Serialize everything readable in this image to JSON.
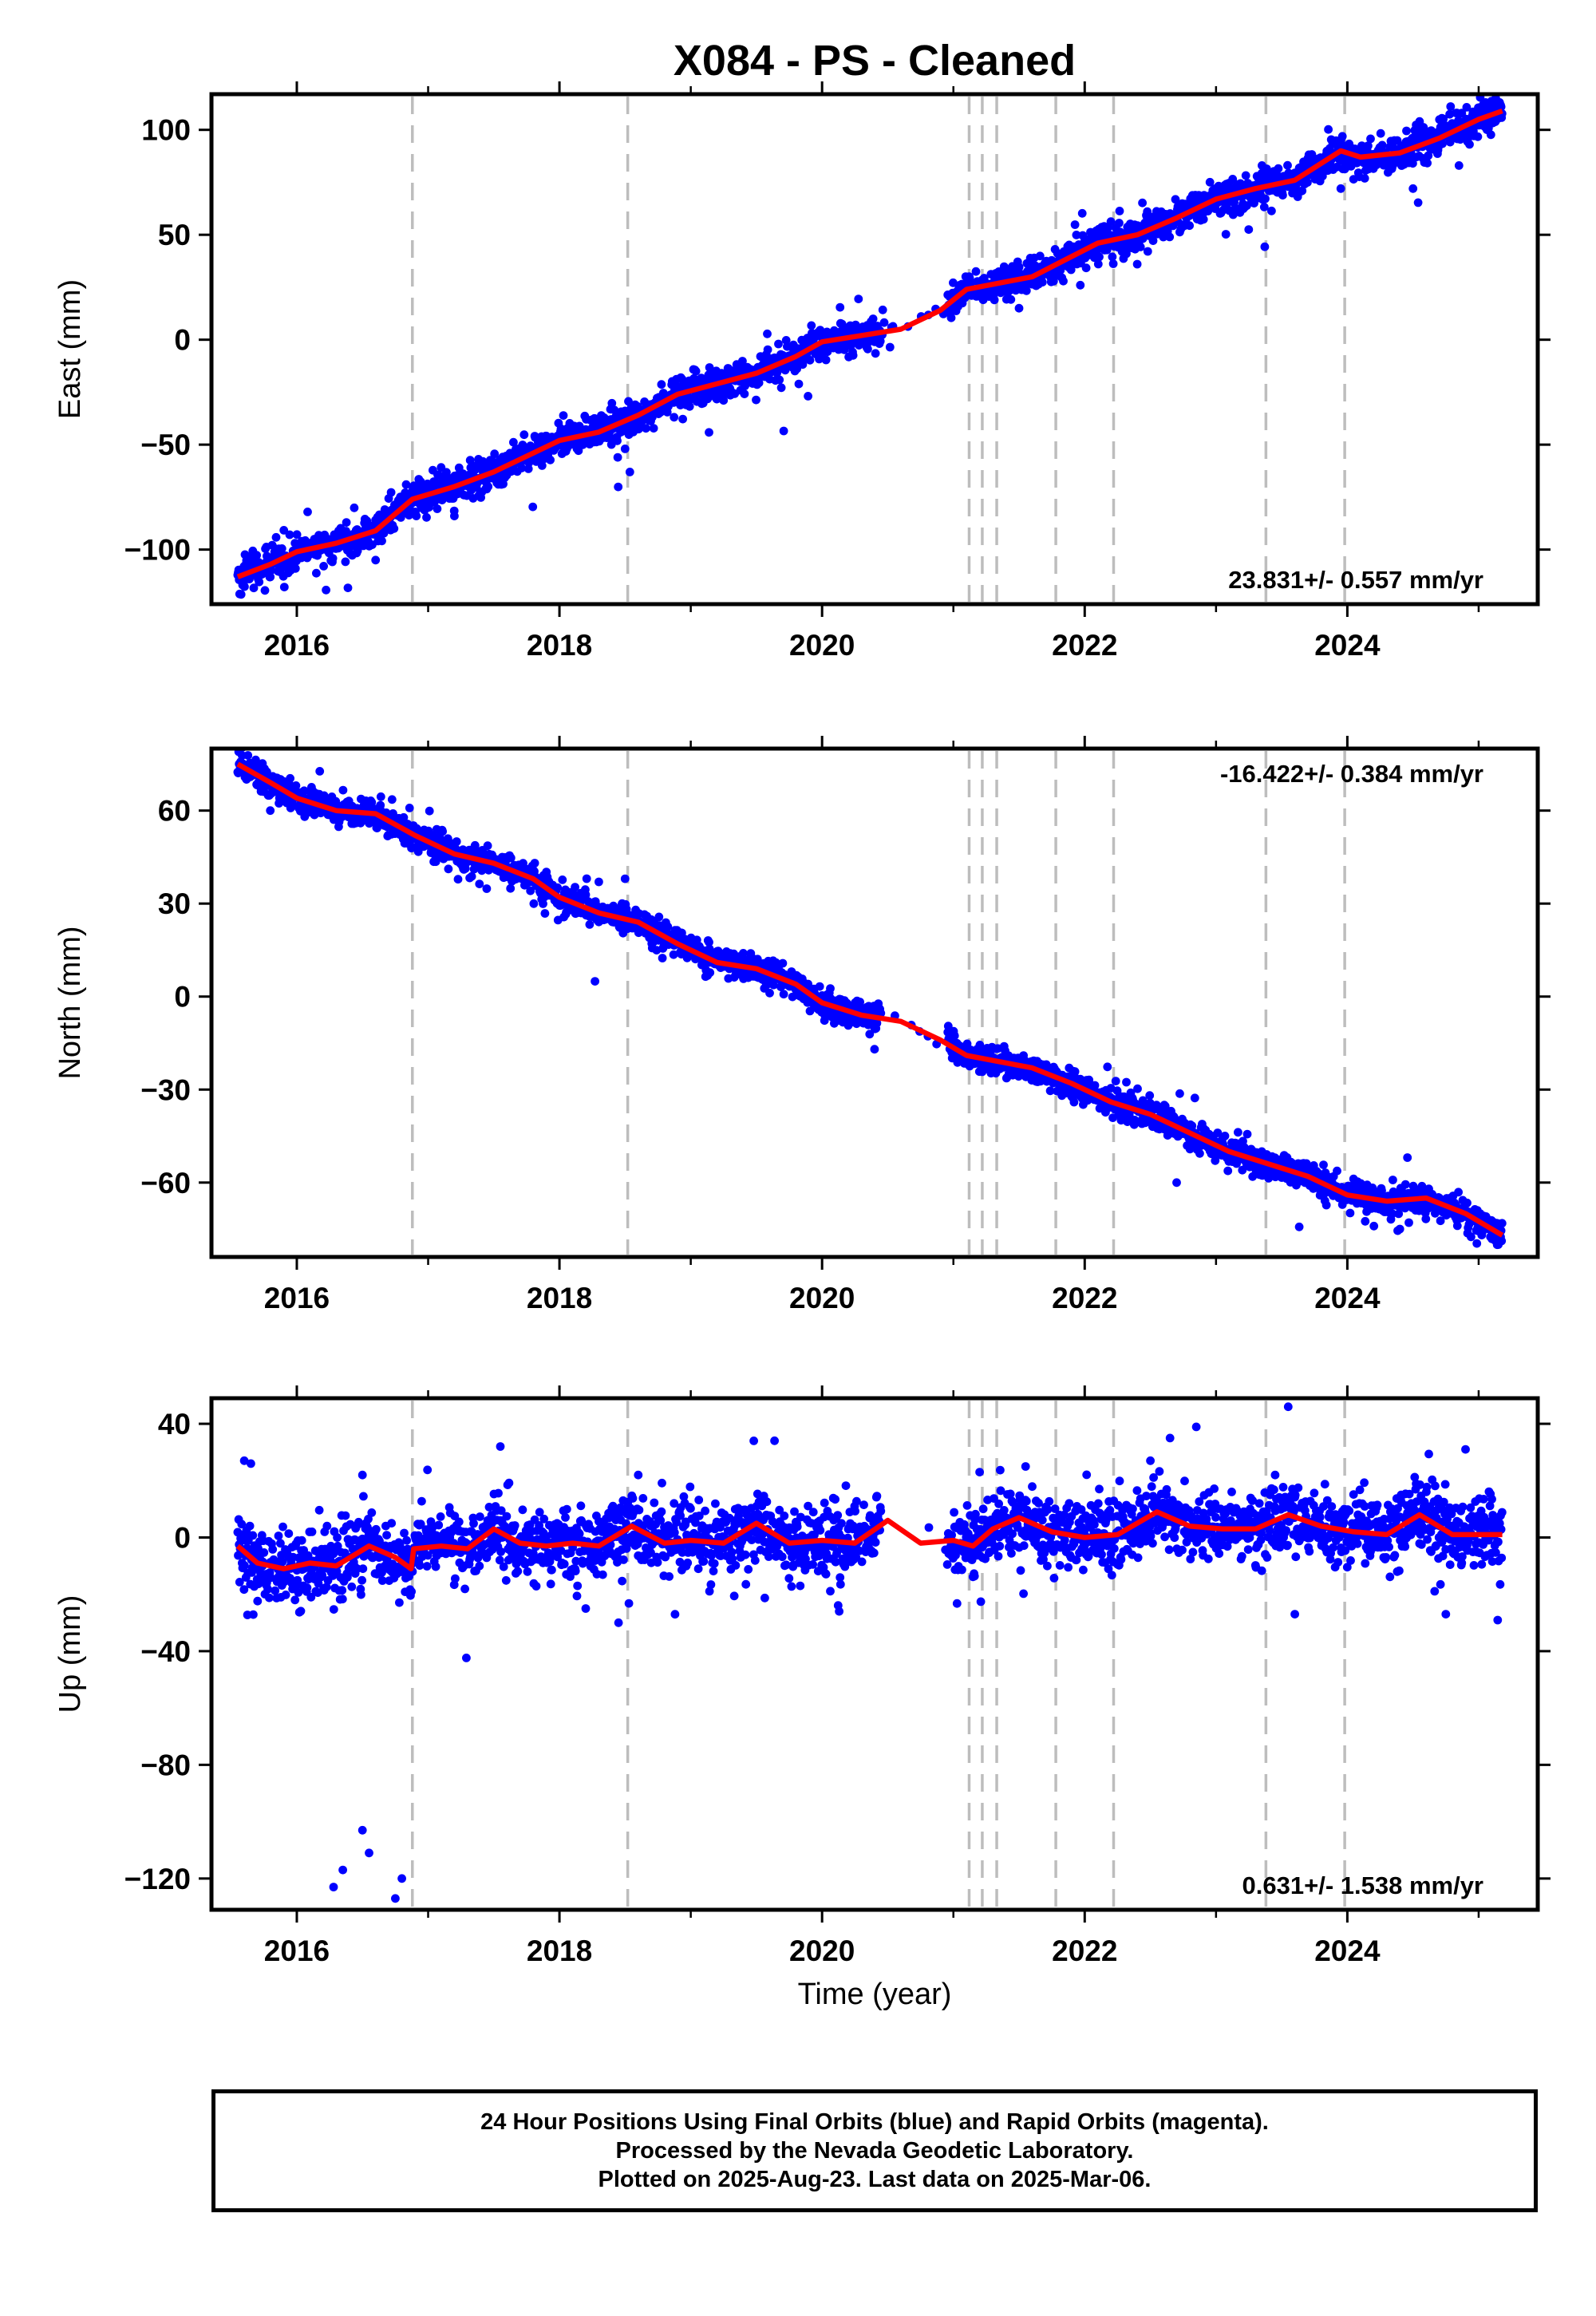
{
  "title": "X084  - PS - Cleaned",
  "footer": {
    "line1": "24 Hour Positions Using Final Orbits (blue) and Rapid Orbits (magenta).",
    "line2": "Processed by the Nevada Geodetic Laboratory.",
    "line3": "Plotted on 2025-Aug-23. Last data on 2025-Mar-06."
  },
  "chart_data": [
    {
      "type": "scatter",
      "component": "East",
      "ylabel": "East (mm)",
      "xlabel": "",
      "xlim": [
        2015.35,
        2025.45
      ],
      "ylim": [
        -126,
        117
      ],
      "xticks": [
        2016,
        2018,
        2020,
        2022,
        2024
      ],
      "xtick_labels": [
        "2016",
        "2018",
        "2020",
        "2022",
        "2024"
      ],
      "yticks": [
        -100,
        -50,
        0,
        50,
        100
      ],
      "ytick_labels": [
        "−100",
        "−50",
        "0",
        "50",
        "100"
      ],
      "rate_label": "23.831+/- 0.557 mm/yr",
      "rate_position": "bottom-right",
      "event_lines": [
        2016.88,
        2018.52,
        2021.12,
        2021.22,
        2021.33,
        2021.78,
        2022.22,
        2023.38,
        2023.98
      ],
      "grid": false,
      "data_gap": [
        2020.45,
        2020.95
      ],
      "model_line": {
        "color": "#ff0000",
        "x": [
          2015.55,
          2015.8,
          2016.0,
          2016.3,
          2016.6,
          2016.88,
          2017.2,
          2017.5,
          2017.8,
          2018.0,
          2018.3,
          2018.6,
          2018.9,
          2019.2,
          2019.5,
          2019.8,
          2020.0,
          2020.3,
          2020.6,
          2020.9,
          2021.1,
          2021.35,
          2021.6,
          2021.85,
          2022.1,
          2022.4,
          2022.7,
          2023.0,
          2023.3,
          2023.6,
          2023.95,
          2024.1,
          2024.4,
          2024.7,
          2025.0,
          2025.18
        ],
        "y": [
          -113,
          -107,
          -101,
          -97,
          -91,
          -76,
          -70,
          -63,
          -54,
          -48,
          -44,
          -36,
          -26,
          -21,
          -16,
          -8,
          -1,
          2,
          5,
          14,
          24,
          27,
          30,
          38,
          46,
          50,
          58,
          67,
          72,
          76,
          90,
          87,
          89,
          96,
          105,
          109
        ]
      },
      "series": [
        {
          "name": "Final Orbits (blue)",
          "color": "#0000ff",
          "trend": {
            "x": [
              2015.55,
              2015.8,
              2016.0,
              2016.3,
              2016.6,
              2016.88,
              2017.2,
              2017.5,
              2017.8,
              2018.0,
              2018.3,
              2018.6,
              2018.9,
              2019.2,
              2019.5,
              2019.8,
              2020.0,
              2020.3,
              2020.6,
              2020.9,
              2021.1,
              2021.35,
              2021.6,
              2021.85,
              2022.1,
              2022.4,
              2022.7,
              2023.0,
              2023.3,
              2023.6,
              2023.95,
              2024.1,
              2024.4,
              2024.7,
              2025.0,
              2025.18
            ],
            "y": [
              -113,
              -107,
              -101,
              -97,
              -91,
              -76,
              -70,
              -63,
              -54,
              -48,
              -44,
              -36,
              -26,
              -21,
              -16,
              -8,
              -1,
              2,
              5,
              14,
              24,
              27,
              30,
              38,
              46,
              50,
              58,
              67,
              72,
              76,
              90,
              87,
              89,
              96,
              105,
              109
            ]
          },
          "scatter_spread_mm": 4,
          "outliers": [
            {
              "x": 2018.5,
              "y": -52
            },
            {
              "x": 2017.2,
              "y": -84
            },
            {
              "x": 2016.6,
              "y": -105
            },
            {
              "x": 2020.4,
              "y": -1
            },
            {
              "x": 2024.5,
              "y": 72
            },
            {
              "x": 2024.55,
              "y": 104
            },
            {
              "x": 2023.35,
              "y": 83
            },
            {
              "x": 2022.4,
              "y": 36
            },
            {
              "x": 2021.5,
              "y": 15
            },
            {
              "x": 2023.95,
              "y": 72
            },
            {
              "x": 2024.85,
              "y": 83
            }
          ]
        }
      ]
    },
    {
      "type": "scatter",
      "component": "North",
      "ylabel": "North (mm)",
      "xlabel": "",
      "xlim": [
        2015.35,
        2025.45
      ],
      "ylim": [
        -84,
        80
      ],
      "xticks": [
        2016,
        2018,
        2020,
        2022,
        2024
      ],
      "xtick_labels": [
        "2016",
        "2018",
        "2020",
        "2022",
        "2024"
      ],
      "yticks": [
        -60,
        -30,
        0,
        30,
        60
      ],
      "ytick_labels": [
        "−60",
        "−30",
        "0",
        "30",
        "60"
      ],
      "rate_label": "-16.422+/- 0.384 mm/yr",
      "rate_position": "top-right",
      "event_lines": [
        2016.88,
        2018.52,
        2021.12,
        2021.22,
        2021.33,
        2021.78,
        2022.22,
        2023.38,
        2023.98
      ],
      "grid": false,
      "data_gap": [
        2020.45,
        2020.95
      ],
      "model_line": {
        "color": "#ff0000",
        "x": [
          2015.55,
          2015.8,
          2016.0,
          2016.3,
          2016.6,
          2016.9,
          2017.2,
          2017.5,
          2017.8,
          2018.0,
          2018.3,
          2018.6,
          2018.9,
          2019.2,
          2019.5,
          2019.8,
          2020.0,
          2020.3,
          2020.6,
          2020.9,
          2021.1,
          2021.35,
          2021.6,
          2021.9,
          2022.2,
          2022.5,
          2022.8,
          2023.1,
          2023.4,
          2023.7,
          2024.0,
          2024.3,
          2024.6,
          2024.9,
          2025.18
        ],
        "y": [
          75,
          69,
          64,
          60,
          59,
          52,
          46,
          43,
          38,
          32,
          27,
          24,
          17,
          11,
          9,
          4,
          -2,
          -6,
          -8,
          -14,
          -19,
          -21,
          -23,
          -28,
          -34,
          -38,
          -44,
          -50,
          -54,
          -58,
          -64,
          -66,
          -65,
          -70,
          -77
        ]
      },
      "series": [
        {
          "name": "Final Orbits (blue)",
          "color": "#0000ff",
          "trend": {
            "x": [
              2015.55,
              2015.8,
              2016.0,
              2016.3,
              2016.6,
              2016.9,
              2017.2,
              2017.5,
              2017.8,
              2018.0,
              2018.3,
              2018.6,
              2018.9,
              2019.2,
              2019.5,
              2019.8,
              2020.0,
              2020.3,
              2020.6,
              2020.9,
              2021.1,
              2021.35,
              2021.6,
              2021.9,
              2022.2,
              2022.5,
              2022.8,
              2023.1,
              2023.4,
              2023.7,
              2024.0,
              2024.3,
              2024.6,
              2024.9,
              2025.18
            ],
            "y": [
              75,
              69,
              64,
              60,
              59,
              52,
              46,
              43,
              38,
              32,
              27,
              24,
              17,
              11,
              9,
              4,
              -2,
              -6,
              -8,
              -14,
              -19,
              -21,
              -23,
              -28,
              -34,
              -38,
              -44,
              -50,
              -54,
              -58,
              -64,
              -66,
              -65,
              -70,
              -77
            ]
          },
          "scatter_spread_mm": 2.2,
          "outliers": [
            {
              "x": 2018.3,
              "y": 37
            },
            {
              "x": 2018.5,
              "y": 38
            },
            {
              "x": 2022.7,
              "y": -60
            },
            {
              "x": 2023.2,
              "y": -56
            },
            {
              "x": 2019.4,
              "y": 14
            },
            {
              "x": 2024.4,
              "y": -75
            },
            {
              "x": 2025.15,
              "y": -80
            }
          ]
        }
      ]
    },
    {
      "type": "scatter",
      "component": "Up",
      "ylabel": "Up (mm)",
      "xlabel": "Time (year)",
      "xlim": [
        2015.35,
        2025.45
      ],
      "ylim": [
        -131,
        49
      ],
      "xticks": [
        2016,
        2018,
        2020,
        2022,
        2024
      ],
      "xtick_labels": [
        "2016",
        "2018",
        "2020",
        "2022",
        "2024"
      ],
      "yticks": [
        -120,
        -80,
        -40,
        0,
        40
      ],
      "ytick_labels": [
        "−120",
        "−80",
        "−40",
        "0",
        "40"
      ],
      "rate_label": "0.631+/- 1.538 mm/yr",
      "rate_position": "bottom-right",
      "event_lines": [
        2016.88,
        2018.52,
        2021.12,
        2021.22,
        2021.33,
        2021.78,
        2022.22,
        2023.38,
        2023.98
      ],
      "grid": false,
      "data_gap": [
        2020.45,
        2020.95
      ],
      "model_line": {
        "color": "#ff0000",
        "x": [
          2015.55,
          2015.7,
          2015.9,
          2016.1,
          2016.3,
          2016.55,
          2016.75,
          2016.87,
          2016.89,
          2017.1,
          2017.3,
          2017.5,
          2017.7,
          2017.9,
          2018.1,
          2018.3,
          2018.55,
          2018.8,
          2019.0,
          2019.25,
          2019.5,
          2019.75,
          2020.0,
          2020.25,
          2020.5,
          2020.75,
          2021.0,
          2021.15,
          2021.3,
          2021.5,
          2021.75,
          2022.0,
          2022.25,
          2022.55,
          2022.8,
          2023.05,
          2023.3,
          2023.55,
          2023.8,
          2024.05,
          2024.3,
          2024.55,
          2024.8,
          2025.0,
          2025.18
        ],
        "y": [
          -3,
          -9,
          -11,
          -9,
          -10,
          -3,
          -7,
          -11,
          -4,
          -3,
          -4,
          3,
          -2,
          -3,
          -2,
          -3,
          4,
          -2,
          -1,
          -2,
          5,
          -2,
          -1,
          -2,
          6,
          -2,
          -1,
          -3,
          3,
          7,
          2,
          0,
          1,
          9,
          4,
          3,
          3,
          8,
          4,
          2,
          1,
          8,
          1,
          1,
          1
        ]
      },
      "series": [
        {
          "name": "Final Orbits (blue)",
          "color": "#0000ff",
          "trend": {
            "x": [
              2015.55,
              2015.7,
              2015.9,
              2016.1,
              2016.3,
              2016.55,
              2016.75,
              2016.87,
              2016.89,
              2017.1,
              2017.3,
              2017.5,
              2017.7,
              2017.9,
              2018.1,
              2018.3,
              2018.55,
              2018.8,
              2019.0,
              2019.25,
              2019.5,
              2019.75,
              2020.0,
              2020.25,
              2020.5,
              2020.75,
              2021.0,
              2021.15,
              2021.3,
              2021.5,
              2021.75,
              2022.0,
              2022.25,
              2022.55,
              2022.8,
              2023.05,
              2023.3,
              2023.55,
              2023.8,
              2024.05,
              2024.3,
              2024.55,
              2024.8,
              2025.0,
              2025.18
            ],
            "y": [
              -3,
              -9,
              -11,
              -9,
              -10,
              -3,
              -7,
              -11,
              -4,
              -3,
              -4,
              3,
              -2,
              -3,
              -2,
              -3,
              4,
              -2,
              -1,
              -2,
              5,
              -2,
              -1,
              -2,
              6,
              -2,
              -1,
              -3,
              3,
              7,
              2,
              0,
              1,
              9,
              4,
              3,
              3,
              8,
              4,
              2,
              1,
              8,
              1,
              1,
              1
            ]
          },
          "scatter_spread_mm": 6,
          "outliers": [
            {
              "x": 2016.28,
              "y": -123
            },
            {
              "x": 2016.35,
              "y": -117
            },
            {
              "x": 2016.5,
              "y": -103
            },
            {
              "x": 2016.55,
              "y": -111
            },
            {
              "x": 2016.75,
              "y": -127
            },
            {
              "x": 2016.8,
              "y": -120
            },
            {
              "x": 2018.2,
              "y": -25
            },
            {
              "x": 2018.45,
              "y": -30
            },
            {
              "x": 2020.13,
              "y": -26
            },
            {
              "x": 2023.55,
              "y": 46
            },
            {
              "x": 2023.6,
              "y": -27
            },
            {
              "x": 2024.75,
              "y": -27
            },
            {
              "x": 2015.6,
              "y": 27
            },
            {
              "x": 2015.65,
              "y": 26
            },
            {
              "x": 2017.55,
              "y": 32
            },
            {
              "x": 2019.48,
              "y": 34
            },
            {
              "x": 2022.65,
              "y": 35
            },
            {
              "x": 2024.9,
              "y": 31
            },
            {
              "x": 2023.45,
              "y": 22
            },
            {
              "x": 2016.5,
              "y": 22
            },
            {
              "x": 2018.6,
              "y": 22
            },
            {
              "x": 2021.2,
              "y": 23
            },
            {
              "x": 2021.55,
              "y": 25
            },
            {
              "x": 2022.5,
              "y": 27
            }
          ]
        }
      ]
    }
  ]
}
